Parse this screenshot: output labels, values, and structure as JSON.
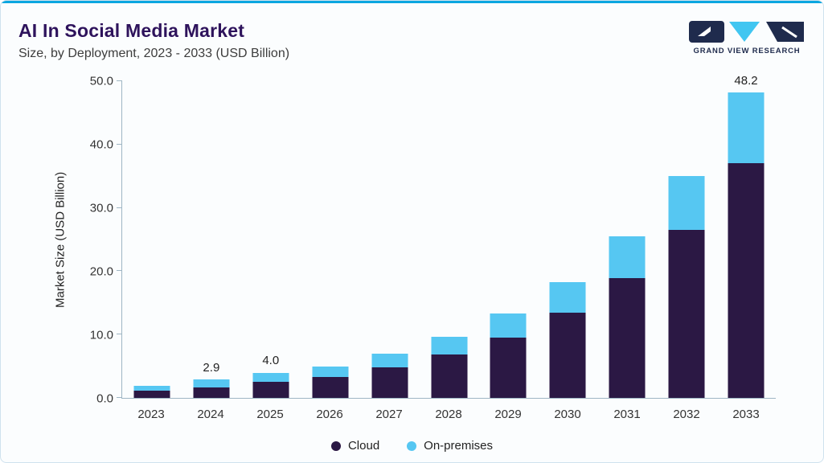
{
  "header": {
    "title": "AI In Social Media Market",
    "subtitle": "Size, by Deployment, 2023 - 2033 (USD Billion)",
    "logo_text": "GRAND VIEW RESEARCH"
  },
  "colors": {
    "cloud": "#2b1844",
    "on_premises": "#56c7f2",
    "accent_top_bar": "#0aa6e0",
    "title": "#2e135c",
    "logo_navy": "#1f2b4d",
    "logo_cyan": "#41c6f1"
  },
  "chart_data": {
    "type": "bar",
    "stacked": true,
    "title": "AI In Social Media Market Size, by Deployment, 2023 - 2033 (USD Billion)",
    "categories": [
      "2023",
      "2024",
      "2025",
      "2026",
      "2027",
      "2028",
      "2029",
      "2030",
      "2031",
      "2032",
      "2033"
    ],
    "series": [
      {
        "name": "Cloud",
        "color": "#2b1844",
        "values": [
          1.1,
          1.7,
          2.5,
          3.3,
          4.8,
          6.8,
          9.5,
          13.4,
          18.9,
          26.5,
          37.0
        ]
      },
      {
        "name": "On-premises",
        "color": "#56c7f2",
        "values": [
          0.8,
          1.2,
          1.5,
          1.7,
          2.2,
          2.8,
          3.8,
          4.9,
          6.6,
          8.5,
          11.2
        ]
      }
    ],
    "totals_labels": {
      "2024": "2.9",
      "2025": "4.0",
      "2033": "48.2"
    },
    "xlabel": "",
    "ylabel": "Market Size (USD Billion)",
    "ylim": [
      0,
      50
    ],
    "yticks": [
      "0.0",
      "10.0",
      "20.0",
      "30.0",
      "40.0",
      "50.0"
    ],
    "grid": false,
    "legend_position": "bottom",
    "legend": [
      {
        "label": "Cloud",
        "color": "#2b1844"
      },
      {
        "label": "On-premises",
        "color": "#56c7f2"
      }
    ]
  }
}
